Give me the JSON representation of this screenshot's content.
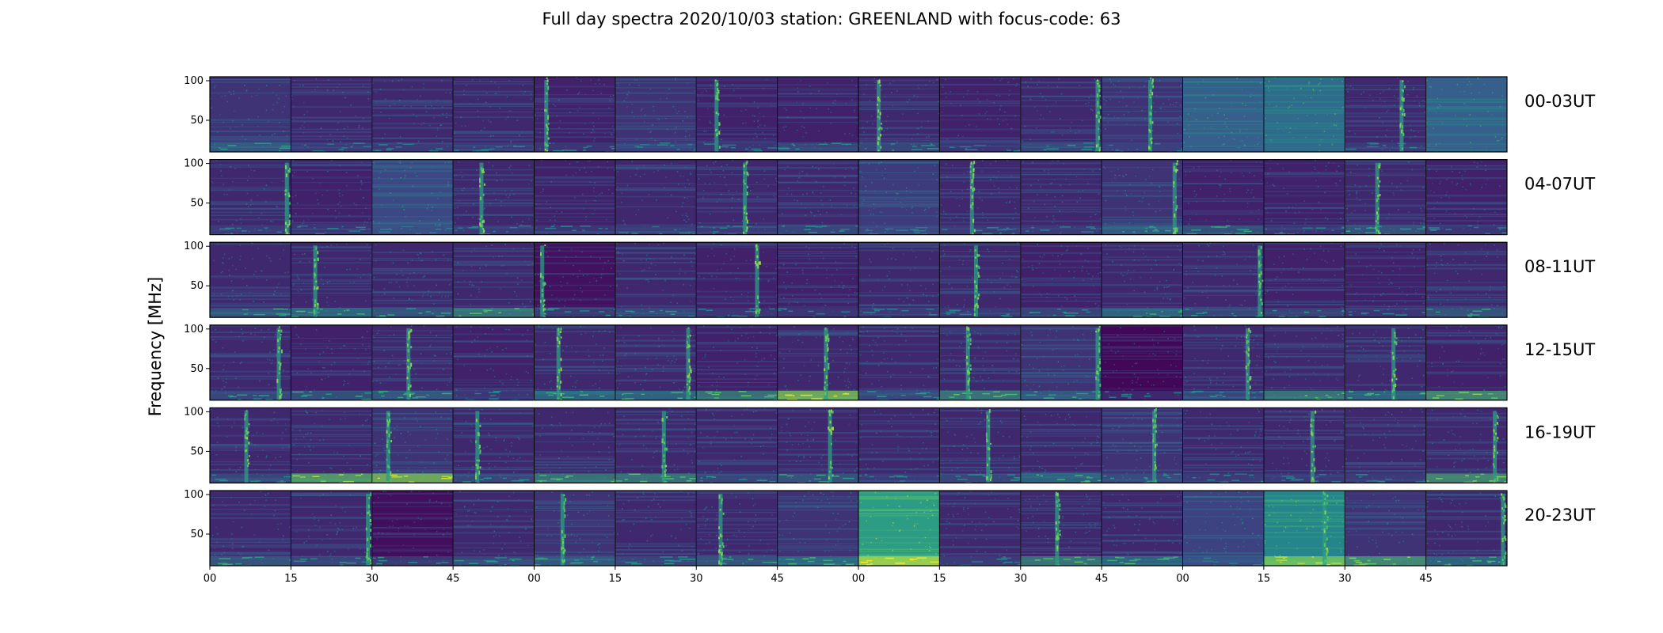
{
  "chart_data": {
    "type": "heatmap",
    "title": "Full day spectra 2020/10/03 station: GREENLAND with focus-code: 63",
    "ylabel": "Frequency [MHz]",
    "xlabel": "",
    "colormap": "viridis",
    "colors": {
      "background": "#440154",
      "mid": "#31688e",
      "bright": "#35b779",
      "peak": "#fde725"
    },
    "rows": [
      "00-03UT",
      "04-07UT",
      "08-11UT",
      "12-15UT",
      "16-19UT",
      "20-23UT"
    ],
    "panels_per_row": 16,
    "panel_minutes": 15,
    "yticks": [
      50,
      100
    ],
    "ylim": [
      10,
      105
    ],
    "xticks": [
      "00",
      "15",
      "30",
      "45",
      "00",
      "15",
      "30",
      "45",
      "00",
      "15",
      "30",
      "45",
      "00",
      "15",
      "30",
      "45"
    ],
    "burst_positions": [
      [
        null,
        null,
        null,
        null,
        0.15,
        null,
        0.25,
        null,
        0.25,
        null,
        0.95,
        0.6,
        null,
        null,
        0.7,
        null
      ],
      [
        0.95,
        null,
        null,
        0.35,
        null,
        null,
        0.6,
        null,
        null,
        0.4,
        null,
        0.9,
        null,
        null,
        0.4,
        null
      ],
      [
        null,
        0.3,
        null,
        null,
        0.1,
        null,
        0.75,
        null,
        null,
        0.45,
        null,
        null,
        0.95,
        null,
        null,
        null
      ],
      [
        0.85,
        null,
        0.45,
        null,
        0.3,
        0.9,
        null,
        0.6,
        null,
        0.35,
        0.95,
        null,
        0.8,
        null,
        0.6,
        null
      ],
      [
        0.45,
        null,
        0.2,
        0.3,
        null,
        0.6,
        null,
        0.65,
        null,
        0.6,
        null,
        0.65,
        null,
        0.6,
        null,
        0.85
      ],
      [
        null,
        0.95,
        null,
        null,
        0.35,
        null,
        0.3,
        null,
        null,
        null,
        0.45,
        null,
        null,
        0.75,
        null,
        0.95
      ]
    ],
    "low_band_intensity": [
      [
        0.3,
        0.1,
        0.1,
        0.1,
        0.1,
        0.1,
        0.1,
        0.2,
        0.2,
        0.1,
        0.2,
        0.1,
        0.0,
        0.0,
        0.1,
        0.0
      ],
      [
        0.1,
        0.1,
        0.1,
        0.1,
        0.1,
        0.1,
        0.1,
        0.2,
        0.1,
        0.1,
        0.1,
        0.3,
        0.3,
        0.1,
        0.3,
        0.1
      ],
      [
        0.3,
        0.4,
        0.3,
        0.5,
        0.2,
        0.2,
        0.1,
        0.1,
        0.1,
        0.1,
        0.2,
        0.4,
        0.2,
        0.2,
        0.1,
        0.3
      ],
      [
        0.2,
        0.3,
        0.3,
        0.1,
        0.4,
        0.4,
        0.5,
        0.8,
        0.2,
        0.5,
        0.3,
        0.1,
        0.2,
        0.5,
        0.4,
        0.6
      ],
      [
        0.2,
        0.7,
        0.8,
        0.2,
        0.5,
        0.5,
        0.2,
        0.3,
        0.1,
        0.2,
        0.4,
        0.2,
        0.1,
        0.1,
        0.1,
        0.6
      ],
      [
        0.3,
        0.2,
        0.2,
        0.2,
        0.3,
        0.2,
        0.3,
        0.4,
        0.9,
        0.1,
        0.5,
        0.4,
        0.1,
        0.8,
        0.6,
        0.4
      ]
    ],
    "panel_brightness": [
      [
        0.15,
        0.12,
        0.12,
        0.12,
        0.1,
        0.15,
        0.1,
        0.1,
        0.12,
        0.1,
        0.12,
        0.15,
        0.3,
        0.35,
        0.12,
        0.3
      ],
      [
        0.12,
        0.1,
        0.22,
        0.12,
        0.1,
        0.12,
        0.12,
        0.12,
        0.18,
        0.12,
        0.12,
        0.15,
        0.1,
        0.1,
        0.12,
        0.1
      ],
      [
        0.12,
        0.12,
        0.12,
        0.12,
        0.05,
        0.12,
        0.1,
        0.1,
        0.12,
        0.12,
        0.1,
        0.12,
        0.12,
        0.1,
        0.1,
        0.12
      ],
      [
        0.12,
        0.1,
        0.12,
        0.1,
        0.12,
        0.12,
        0.1,
        0.12,
        0.12,
        0.12,
        0.15,
        0.02,
        0.12,
        0.12,
        0.12,
        0.1
      ],
      [
        0.12,
        0.12,
        0.15,
        0.12,
        0.12,
        0.12,
        0.12,
        0.12,
        0.12,
        0.12,
        0.12,
        0.15,
        0.12,
        0.12,
        0.12,
        0.12
      ],
      [
        0.12,
        0.12,
        0.04,
        0.12,
        0.15,
        0.12,
        0.12,
        0.15,
        0.55,
        0.12,
        0.12,
        0.12,
        0.2,
        0.45,
        0.15,
        0.12
      ]
    ]
  }
}
